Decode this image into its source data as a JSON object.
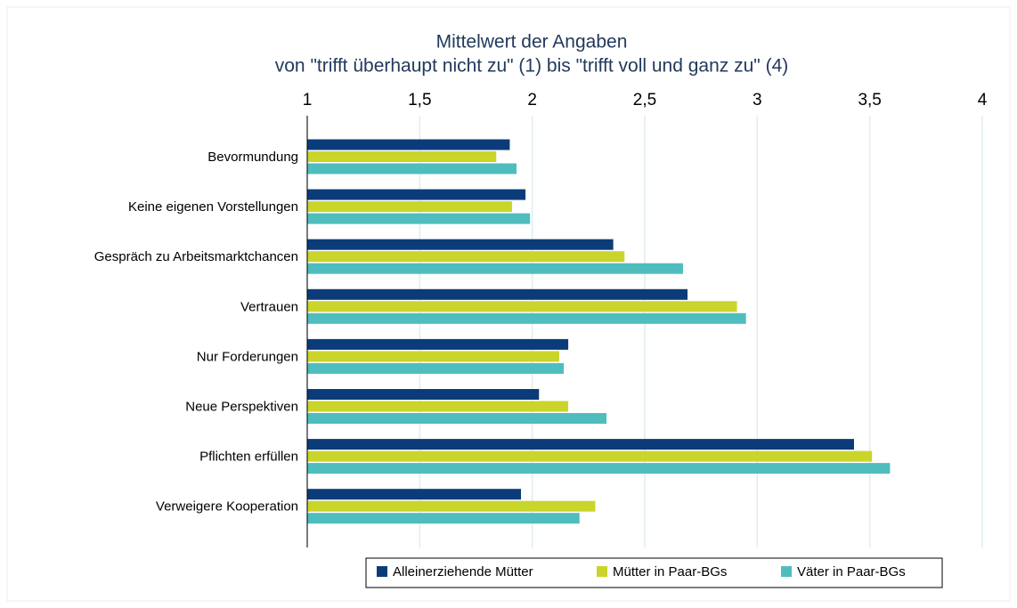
{
  "chart_data": {
    "type": "hbar",
    "title": "Mittelwert der Angaben",
    "subtitle": "von \"trifft überhaupt nicht zu\" (1) bis \"trifft voll und ganz zu\" (4)",
    "categories": [
      "Bevormundung",
      "Keine eigenen Vorstellungen",
      "Gespräch zu Arbeitsmarktchancen",
      "Vertrauen",
      "Nur Forderungen",
      "Neue Perspektiven",
      "Pflichten erfüllen",
      "Verweigere Kooperation"
    ],
    "series": [
      {
        "name": "Alleinerziehende Mütter",
        "color": "#0b3c79",
        "values": [
          1.9,
          1.97,
          2.36,
          2.69,
          2.16,
          2.03,
          3.43,
          1.95
        ]
      },
      {
        "name": "Mütter in Paar-BGs",
        "color": "#c9d52b",
        "values": [
          1.84,
          1.91,
          2.41,
          2.91,
          2.12,
          2.16,
          3.51,
          2.28
        ]
      },
      {
        "name": "Väter in Paar-BGs",
        "color": "#4fbdbd",
        "values": [
          1.93,
          1.99,
          2.67,
          2.95,
          2.14,
          2.33,
          3.59,
          2.21
        ]
      }
    ],
    "xlim": [
      1,
      4
    ],
    "xticks": [
      1,
      {
        "value": 1.5,
        "label": "1,5"
      },
      2,
      {
        "value": 2.5,
        "label": "2,5"
      },
      3,
      {
        "value": 3.5,
        "label": "3,5"
      },
      4
    ],
    "grid": true,
    "legend": "bottom"
  }
}
